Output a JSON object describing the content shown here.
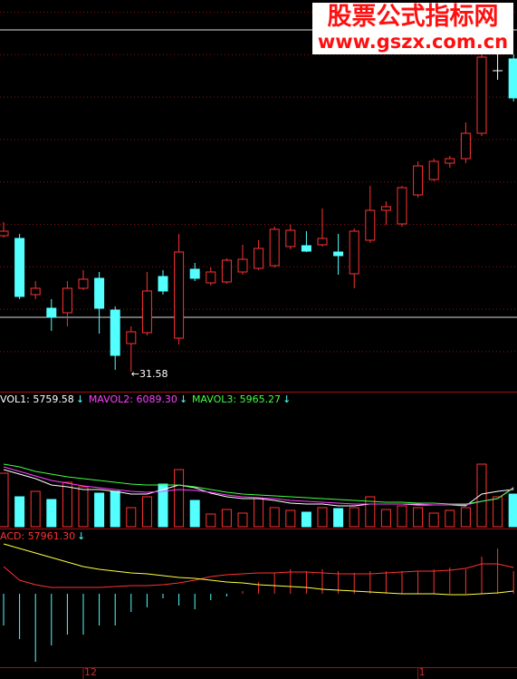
{
  "watermark": {
    "title": "股票公式指标网",
    "url": "www.gszx.com.cn"
  },
  "chart_data": [
    {
      "type": "candlestick",
      "categories": [
        null,
        null,
        null,
        null,
        null,
        "12",
        null,
        null,
        null,
        null,
        null,
        null,
        null,
        null,
        null,
        null,
        null,
        null,
        null,
        null,
        null,
        null,
        null,
        null,
        null,
        null,
        "1",
        null,
        null,
        null,
        null,
        null,
        null
      ],
      "open": [
        34.58,
        34.52,
        33.28,
        32.98,
        32.88,
        33.42,
        33.64,
        32.94,
        32.2,
        32.44,
        33.68,
        32.32,
        33.84,
        33.54,
        33.56,
        33.78,
        33.86,
        33.92,
        34.34,
        34.36,
        34.38,
        34.22,
        33.74,
        34.48,
        35.14,
        34.84,
        35.48,
        35.82,
        36.18,
        36.28,
        36.84,
        38.22,
        38.48
      ],
      "close": [
        34.68,
        33.24,
        33.42,
        32.78,
        33.42,
        33.62,
        32.98,
        31.94,
        32.46,
        33.36,
        33.36,
        34.22,
        33.64,
        33.78,
        34.04,
        34.06,
        34.3,
        34.72,
        34.7,
        34.24,
        34.52,
        34.14,
        34.68,
        35.14,
        35.22,
        35.64,
        36.12,
        36.22,
        36.28,
        36.84,
        38.52,
        38.22,
        37.62
      ],
      "high": [
        34.88,
        34.62,
        33.58,
        33.18,
        33.58,
        33.82,
        33.78,
        33.02,
        32.58,
        33.78,
        33.82,
        34.62,
        33.98,
        33.88,
        34.08,
        34.38,
        34.48,
        34.78,
        34.82,
        34.68,
        35.18,
        34.62,
        34.74,
        35.68,
        35.34,
        35.68,
        36.22,
        36.28,
        36.34,
        37.08,
        38.62,
        38.68,
        38.58
      ],
      "low": [
        34.54,
        33.18,
        33.18,
        32.48,
        32.58,
        33.38,
        32.42,
        31.62,
        31.58,
        32.38,
        33.28,
        32.18,
        33.58,
        33.48,
        33.52,
        33.72,
        33.82,
        33.88,
        34.28,
        34.22,
        34.34,
        33.72,
        33.42,
        34.42,
        34.82,
        34.78,
        35.42,
        35.78,
        36.08,
        36.18,
        36.78,
        38.02,
        37.54
      ],
      "ylim": [
        31.18,
        39.78
      ],
      "hlines": [
        39.12,
        32.78
      ],
      "annotation": "←31.58",
      "up_color": "#ff3232",
      "down_color": "#54ffff",
      "flat_color": "#ffffff",
      "grid": true
    },
    {
      "type": "bar",
      "values": [
        8260,
        4620,
        5460,
        4200,
        6860,
        6160,
        5180,
        5460,
        2940,
        4620,
        6580,
        8820,
        4060,
        1960,
        2660,
        2100,
        4340,
        2940,
        2520,
        2240,
        2940,
        2800,
        2940,
        4620,
        2660,
        3220,
        2940,
        2100,
        2520,
        2940,
        9660,
        4620,
        5040
      ],
      "ylim": [
        0,
        20440
      ],
      "series": [
        {
          "name": "VOL1: 5759.58",
          "color": "#ffffff",
          "values": [
            8820,
            8120,
            7420,
            6440,
            6160,
            5740,
            5740,
            5460,
            5040,
            5040,
            5740,
            6440,
            6020,
            5180,
            4620,
            4340,
            4340,
            4060,
            3640,
            3500,
            3500,
            3220,
            3220,
            3500,
            3500,
            3500,
            3360,
            3360,
            3360,
            3220,
            5040,
            5460,
            5759.58
          ]
        },
        {
          "name": "MAVOL2: 6089.30",
          "color": "#ff40ff",
          "values": [
            9240,
            8540,
            7840,
            7140,
            6720,
            6300,
            6020,
            5740,
            5460,
            5320,
            5460,
            5740,
            5600,
            5320,
            4900,
            4620,
            4480,
            4340,
            4060,
            3920,
            3780,
            3640,
            3500,
            3500,
            3500,
            3500,
            3500,
            3360,
            3360,
            3360,
            3920,
            4340,
            6089.3
          ]
        },
        {
          "name": "MAVOL3: 5965.27",
          "color": "#40ff40",
          "values": [
            9660,
            9240,
            8540,
            8120,
            7700,
            7420,
            7140,
            6860,
            6580,
            6440,
            6440,
            6440,
            6160,
            5740,
            5320,
            5040,
            4900,
            4760,
            4620,
            4480,
            4340,
            4200,
            4060,
            3920,
            3780,
            3780,
            3640,
            3640,
            3500,
            3500,
            3920,
            4340,
            5965.27
          ]
        }
      ]
    },
    {
      "type": "histogram-lines",
      "values": [
        -70000,
        -100000,
        -150000,
        -114000,
        -90000,
        -90000,
        -70000,
        -70000,
        -40000,
        -30000,
        -10000,
        -26000,
        -34000,
        -14000,
        -6000,
        6000,
        26000,
        46000,
        54000,
        50000,
        54000,
        50000,
        46000,
        50000,
        50000,
        50000,
        50000,
        54000,
        58000,
        54000,
        82000,
        100000,
        50000
      ],
      "ylim": [
        -160000,
        142000
      ],
      "up_color": "#ff3232",
      "down_color": "#54ffff",
      "series": [
        {
          "name": "ACD: 57961.30",
          "color": "#ff3232",
          "values": [
            60000,
            30000,
            20000,
            14000,
            14000,
            14000,
            14000,
            16000,
            18000,
            18000,
            20000,
            24000,
            30000,
            38000,
            42000,
            44000,
            46000,
            46000,
            48000,
            48000,
            46000,
            44000,
            44000,
            44000,
            46000,
            48000,
            50000,
            50000,
            52000,
            56000,
            66000,
            66000,
            57961.3
          ]
        },
        {
          "color": "#ffff40",
          "values": [
            110000,
            100000,
            90000,
            80000,
            70000,
            60000,
            54000,
            50000,
            46000,
            44000,
            40000,
            36000,
            34000,
            30000,
            26000,
            24000,
            20000,
            18000,
            16000,
            14000,
            10000,
            8000,
            6000,
            4000,
            2000,
            0,
            0,
            0,
            -2000,
            -2000,
            0,
            2000,
            6000
          ]
        }
      ]
    }
  ]
}
